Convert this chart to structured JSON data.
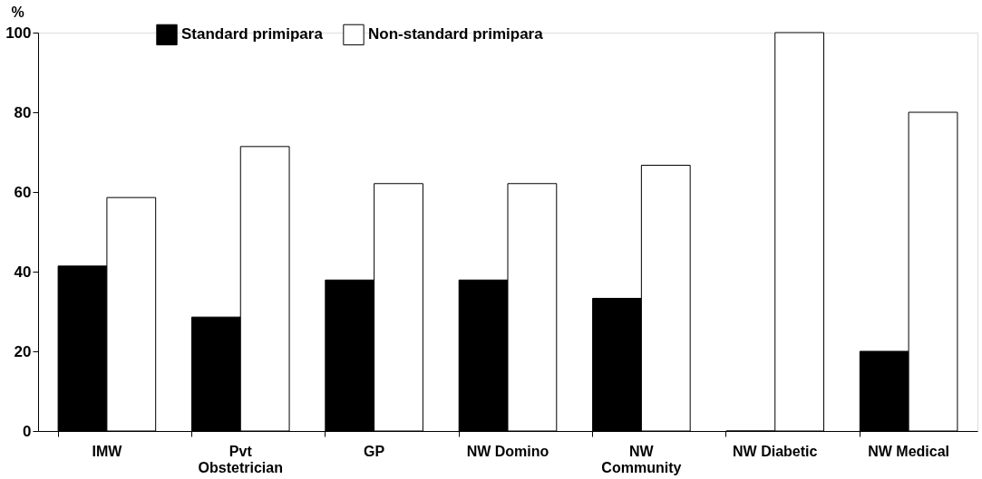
{
  "chart_data": {
    "type": "bar",
    "ylabel": "%",
    "categories": [
      "IMW",
      "Pvt\nObstetrician",
      "GP",
      "NW Domino",
      "NW\nCommunity",
      "NW Diabetic",
      "NW Medical"
    ],
    "series": [
      {
        "name": "Standard primipara",
        "color": "#000000",
        "values": [
          41.4,
          28.6,
          37.9,
          37.9,
          33.3,
          0,
          20
        ]
      },
      {
        "name": "Non-standard primipara",
        "color": "#ffffff",
        "values": [
          58.6,
          71.4,
          62.1,
          62.1,
          66.7,
          100,
          80
        ]
      }
    ],
    "ylim": [
      0,
      100
    ],
    "yticks": [
      0,
      20,
      40,
      60,
      80,
      100
    ],
    "grid": false,
    "legend": "top"
  }
}
